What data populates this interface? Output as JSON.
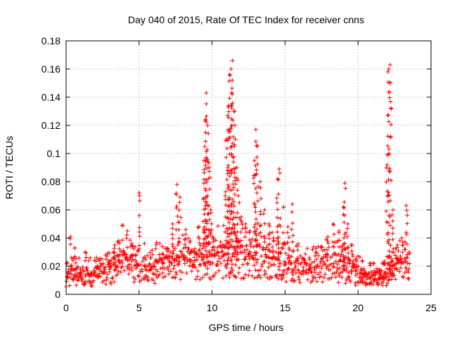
{
  "chart_data": {
    "type": "scatter",
    "title": "Day 040 of 2015, Rate Of TEC Index for receiver cnns",
    "xlabel": "GPS time / hours",
    "ylabel": "ROTI / TECUs",
    "xlim": [
      0,
      25
    ],
    "ylim": [
      0,
      0.18
    ],
    "xticks": [
      "0",
      "5",
      "10",
      "15",
      "20",
      "25"
    ],
    "yticks": [
      "0",
      "0.02",
      "0.04",
      "0.06",
      "0.08",
      "0.1",
      "0.12",
      "0.14",
      "0.16",
      "0.18"
    ],
    "grid": true,
    "marker": "+",
    "series": [
      {
        "name": "ROTI",
        "color": "#ff0000",
        "x": [
          0.1,
          0.3,
          0.6,
          1.0,
          1.3,
          1.7,
          2.1,
          2.6,
          3.0,
          3.3,
          3.6,
          3.9,
          4.2,
          4.5,
          4.8,
          5.0,
          5.4,
          5.8,
          6.2,
          6.6,
          7.0,
          7.3,
          7.6,
          7.8,
          8.2,
          8.5,
          8.8,
          9.1,
          9.4,
          9.5,
          9.6,
          9.7,
          9.8,
          9.9,
          10.1,
          10.4,
          10.7,
          10.9,
          11.0,
          11.1,
          11.2,
          11.3,
          11.4,
          11.5,
          11.6,
          11.7,
          11.8,
          12.0,
          12.3,
          12.6,
          12.9,
          13.0,
          13.1,
          13.3,
          13.6,
          13.9,
          14.2,
          14.5,
          14.6,
          14.9,
          15.2,
          15.5,
          15.9,
          16.3,
          16.7,
          17.1,
          17.5,
          17.9,
          18.3,
          18.7,
          19.0,
          19.1,
          19.3,
          19.6,
          19.9,
          20.2,
          20.5,
          20.8,
          21.1,
          21.4,
          21.7,
          21.9,
          22.0,
          22.1,
          22.2,
          22.4,
          22.7,
          23.0,
          23.3,
          23.5
        ],
        "y": [
          0.012,
          0.041,
          0.033,
          0.018,
          0.03,
          0.015,
          0.013,
          0.016,
          0.022,
          0.03,
          0.038,
          0.049,
          0.045,
          0.036,
          0.028,
          0.072,
          0.02,
          0.018,
          0.024,
          0.029,
          0.032,
          0.05,
          0.078,
          0.069,
          0.046,
          0.038,
          0.03,
          0.048,
          0.068,
          0.105,
          0.143,
          0.12,
          0.09,
          0.06,
          0.04,
          0.03,
          0.035,
          0.07,
          0.11,
          0.133,
          0.156,
          0.16,
          0.166,
          0.13,
          0.11,
          0.09,
          0.07,
          0.055,
          0.05,
          0.045,
          0.095,
          0.117,
          0.105,
          0.08,
          0.06,
          0.05,
          0.04,
          0.082,
          0.089,
          0.062,
          0.048,
          0.064,
          0.036,
          0.025,
          0.02,
          0.03,
          0.034,
          0.038,
          0.05,
          0.045,
          0.062,
          0.079,
          0.05,
          0.035,
          0.025,
          0.018,
          0.015,
          0.012,
          0.01,
          0.011,
          0.012,
          0.015,
          0.099,
          0.16,
          0.163,
          0.06,
          0.035,
          0.04,
          0.063,
          0.03
        ],
        "baseline": {
          "x": [
            0,
            1,
            2,
            3,
            4,
            5,
            6,
            7,
            8,
            9,
            10,
            11,
            12,
            13,
            14,
            15,
            16,
            17,
            18,
            19,
            20,
            21,
            22,
            23,
            23.5
          ],
          "level": [
            0.012,
            0.013,
            0.013,
            0.016,
            0.02,
            0.018,
            0.017,
            0.02,
            0.022,
            0.021,
            0.023,
            0.024,
            0.025,
            0.025,
            0.022,
            0.018,
            0.017,
            0.017,
            0.02,
            0.018,
            0.013,
            0.011,
            0.012,
            0.02,
            0.018
          ]
        }
      }
    ]
  }
}
